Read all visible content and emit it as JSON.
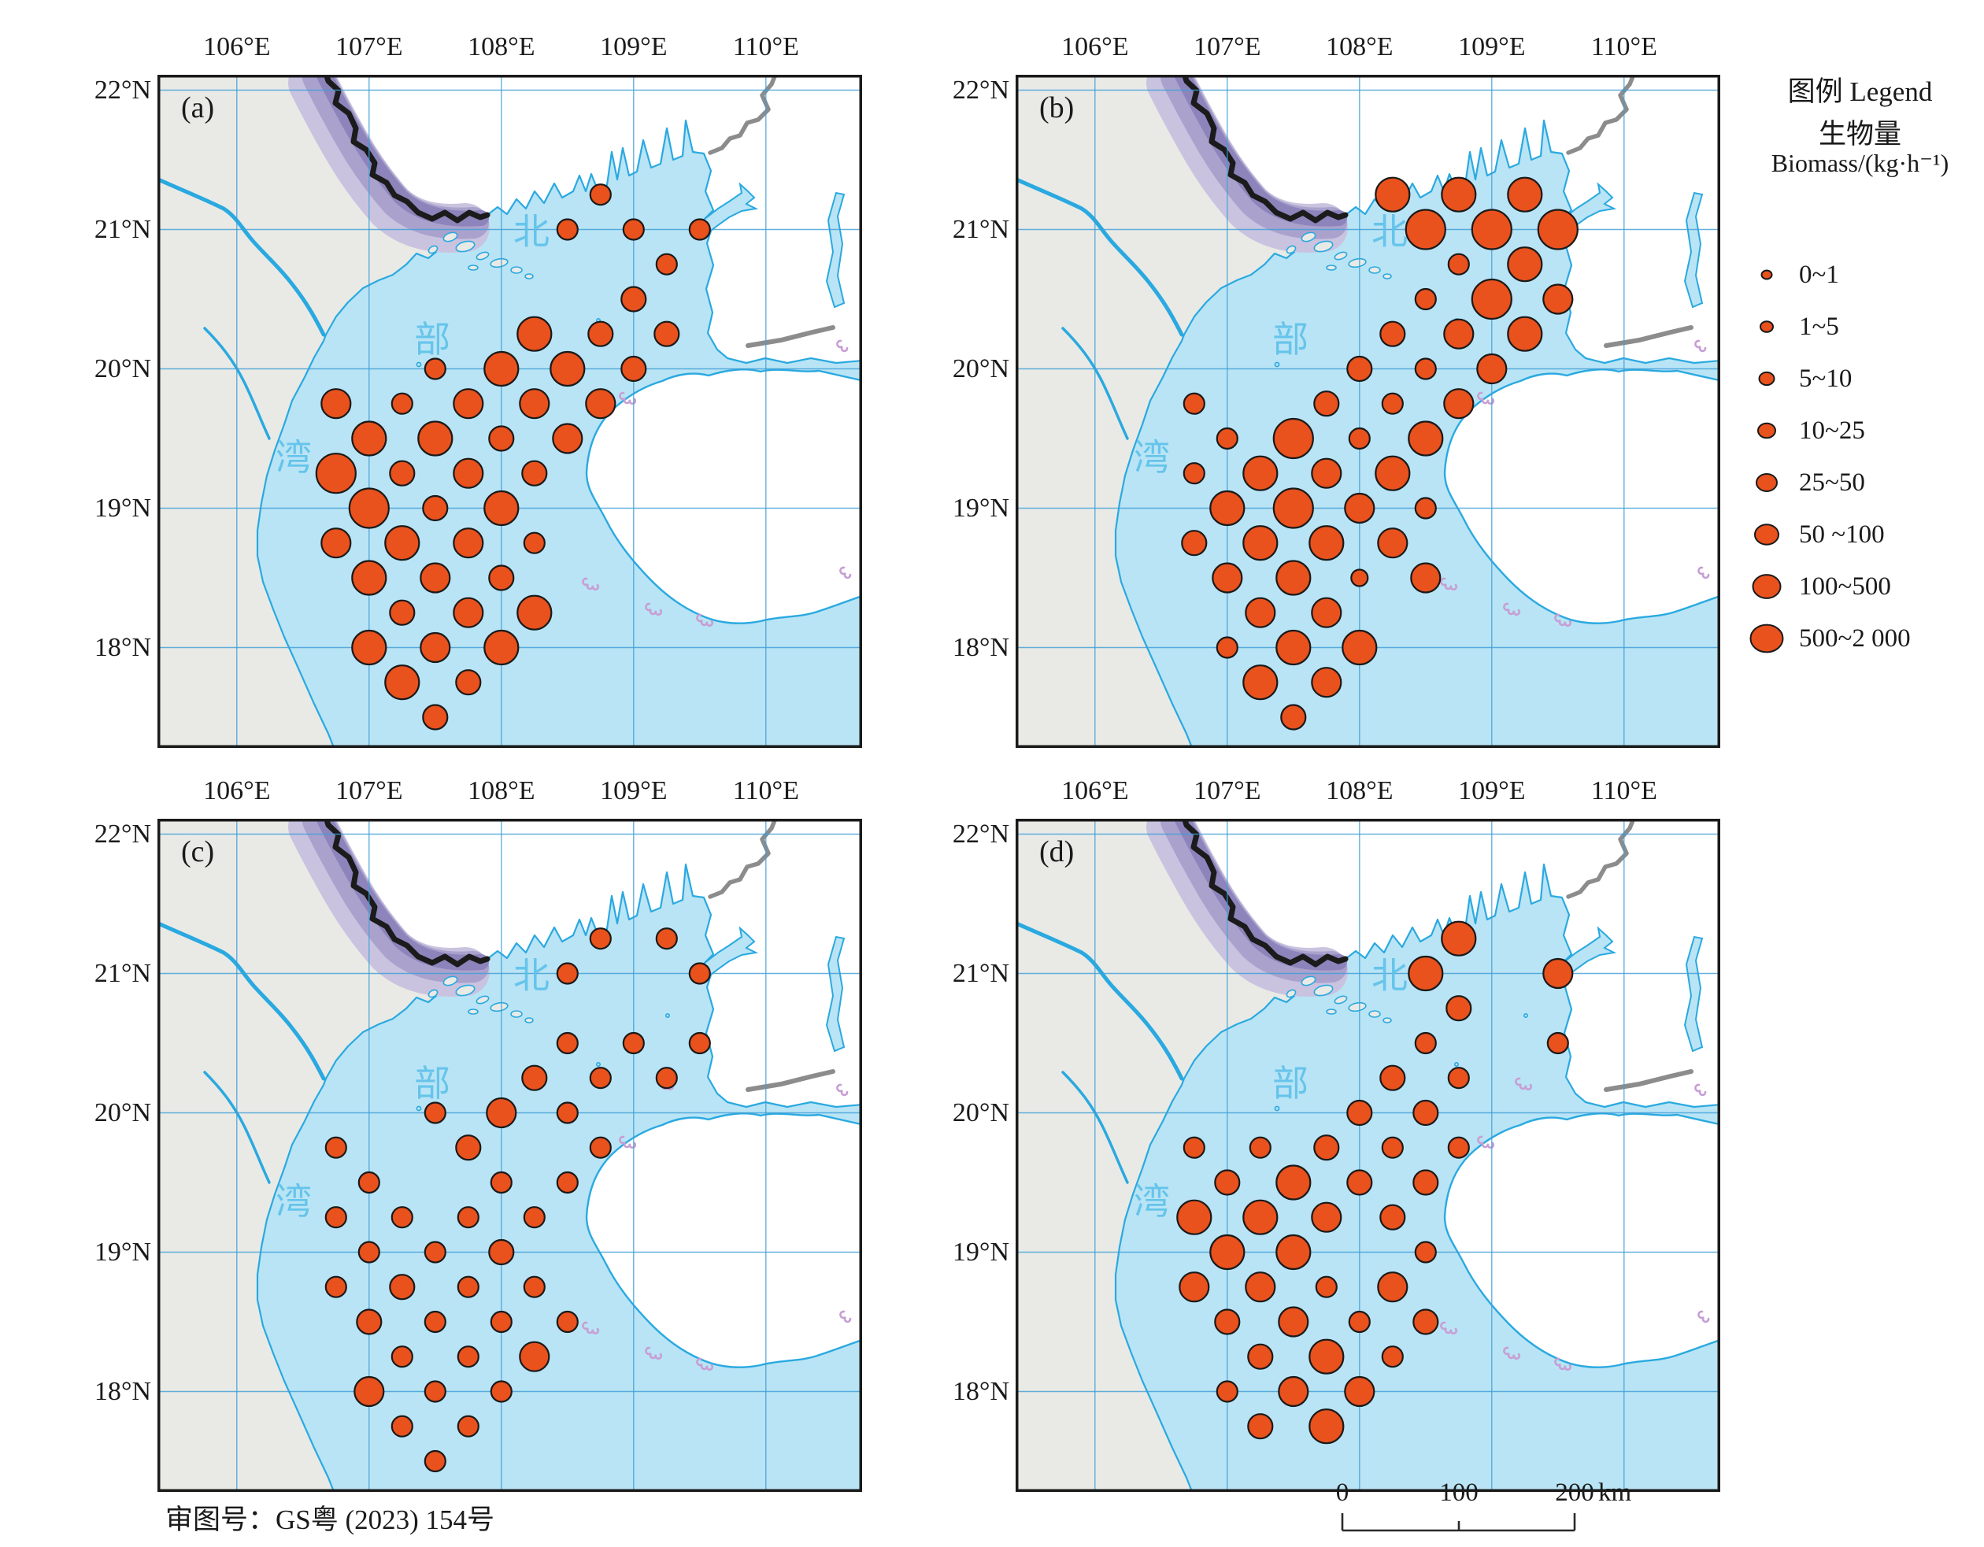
{
  "figure": {
    "kind": "four-panel bubble map of fishery biomass, Beibu Gulf"
  },
  "axes": {
    "lon_labels": [
      "106°E",
      "107°E",
      "108°E",
      "109°E",
      "110°E"
    ],
    "lat_labels": [
      "22°N",
      "21°N",
      "20°N",
      "19°N",
      "18°N"
    ]
  },
  "panels": [
    {
      "id": "a",
      "label": "(a)"
    },
    {
      "id": "b",
      "label": "(b)"
    },
    {
      "id": "c",
      "label": "(c)"
    },
    {
      "id": "d",
      "label": "(d)"
    }
  ],
  "sea_name": {
    "chars": [
      "北",
      "部",
      "湾"
    ]
  },
  "legend": {
    "title": "图例 Legend",
    "subtitle_zh": "生物量",
    "unit_line": "Biomass/(kg·h⁻¹)",
    "classes": [
      "0~1",
      "1~5",
      "5~10",
      "10~25",
      "25~50",
      "50 ~100",
      "100~500",
      "500~2 000"
    ]
  },
  "scalebar": {
    "labels": [
      "0",
      "100",
      "200"
    ],
    "unit": "km"
  },
  "note": "审图号：GS粤 (2023) 154号",
  "colors": {
    "sea": "#b9e4f5",
    "land_grey": "#e9eae6",
    "land_white": "#ffffff",
    "coast": "#2aa9e0",
    "grid": "#3f9ed6",
    "bubble": "#e9511d",
    "bubble_outline": "#1a1a1a",
    "border_black": "#1b1b1b",
    "border_grey": "#8c8c8c",
    "band_dark": "#8e84bc",
    "band_mid": "#aaa2cd",
    "band_light": "#c9c3e0",
    "coral": "#c79fd4",
    "sea_text": "#5ec1ea",
    "frame": "#1a1a1a"
  },
  "chart_data": {
    "type": "scatter",
    "subtype": "bubble-map",
    "x_axis": {
      "ticks": [
        "106°E",
        "107°E",
        "108°E",
        "109°E",
        "110°E"
      ],
      "range": [
        105.4,
        110.73
      ]
    },
    "y_axis": {
      "ticks": [
        "22°N",
        "21°N",
        "20°N",
        "19°N",
        "18°N"
      ],
      "range": [
        17.28,
        22.11
      ]
    },
    "size_classes": [
      "0~1",
      "1~5",
      "5~10",
      "10~25",
      "25~50",
      "50 ~100",
      "100~500",
      "500~2 000"
    ],
    "point_format": [
      "longitude_deg_E",
      "latitude_deg_N",
      "size_class_index_1to8"
    ],
    "series": [
      {
        "panel": "a",
        "label": "(a)",
        "points": [
          [
            108.75,
            21.25,
            3
          ],
          [
            108.5,
            21,
            3
          ],
          [
            109,
            21,
            3
          ],
          [
            109.5,
            21,
            3
          ],
          [
            109.25,
            20.75,
            3
          ],
          [
            109,
            20.5,
            4
          ],
          [
            108.25,
            20.25,
            6
          ],
          [
            108.75,
            20.25,
            4
          ],
          [
            109.25,
            20.25,
            4
          ],
          [
            107.5,
            20,
            3
          ],
          [
            108,
            20,
            6
          ],
          [
            108.5,
            20,
            6
          ],
          [
            109,
            20,
            4
          ],
          [
            106.75,
            19.75,
            5
          ],
          [
            107.25,
            19.75,
            3
          ],
          [
            107.75,
            19.75,
            5
          ],
          [
            108.25,
            19.75,
            5
          ],
          [
            108.75,
            19.75,
            5
          ],
          [
            107,
            19.5,
            6
          ],
          [
            107.5,
            19.5,
            6
          ],
          [
            108,
            19.5,
            4
          ],
          [
            108.5,
            19.5,
            5
          ],
          [
            106.75,
            19.25,
            7
          ],
          [
            107.25,
            19.25,
            4
          ],
          [
            107.75,
            19.25,
            5
          ],
          [
            108.25,
            19.25,
            4
          ],
          [
            107,
            19,
            7
          ],
          [
            107.5,
            19,
            4
          ],
          [
            108,
            19,
            6
          ],
          [
            106.75,
            18.75,
            5
          ],
          [
            107.25,
            18.75,
            6
          ],
          [
            107.75,
            18.75,
            5
          ],
          [
            108.25,
            18.75,
            3
          ],
          [
            107,
            18.5,
            6
          ],
          [
            107.5,
            18.5,
            5
          ],
          [
            108,
            18.5,
            4
          ],
          [
            107.25,
            18.25,
            4
          ],
          [
            107.75,
            18.25,
            5
          ],
          [
            108.25,
            18.25,
            6
          ],
          [
            107,
            18,
            6
          ],
          [
            107.5,
            18,
            5
          ],
          [
            108,
            18,
            6
          ],
          [
            107.25,
            17.75,
            6
          ],
          [
            107.75,
            17.75,
            4
          ],
          [
            107.5,
            17.5,
            4
          ]
        ]
      },
      {
        "panel": "b",
        "label": "(b)",
        "points": [
          [
            108.25,
            21.25,
            6
          ],
          [
            108.75,
            21.25,
            6
          ],
          [
            109.25,
            21.25,
            6
          ],
          [
            108.5,
            21,
            7
          ],
          [
            109,
            21,
            7
          ],
          [
            109.5,
            21,
            7
          ],
          [
            108.75,
            20.75,
            3
          ],
          [
            109.25,
            20.75,
            6
          ],
          [
            108.5,
            20.5,
            3
          ],
          [
            109,
            20.5,
            7
          ],
          [
            109.5,
            20.5,
            5
          ],
          [
            108.25,
            20.25,
            4
          ],
          [
            108.75,
            20.25,
            5
          ],
          [
            109.25,
            20.25,
            6
          ],
          [
            108,
            20,
            4
          ],
          [
            108.5,
            20,
            3
          ],
          [
            109,
            20,
            5
          ],
          [
            106.75,
            19.75,
            3
          ],
          [
            107.75,
            19.75,
            4
          ],
          [
            108.25,
            19.75,
            3
          ],
          [
            108.75,
            19.75,
            5
          ],
          [
            107,
            19.5,
            3
          ],
          [
            107.5,
            19.5,
            7
          ],
          [
            108,
            19.5,
            3
          ],
          [
            108.5,
            19.5,
            6
          ],
          [
            106.75,
            19.25,
            3
          ],
          [
            107.25,
            19.25,
            6
          ],
          [
            107.75,
            19.25,
            5
          ],
          [
            108.25,
            19.25,
            6
          ],
          [
            107,
            19,
            6
          ],
          [
            107.5,
            19,
            7
          ],
          [
            108,
            19,
            5
          ],
          [
            108.5,
            19,
            3
          ],
          [
            106.75,
            18.75,
            4
          ],
          [
            107.25,
            18.75,
            6
          ],
          [
            107.75,
            18.75,
            6
          ],
          [
            108.25,
            18.75,
            5
          ],
          [
            107,
            18.5,
            5
          ],
          [
            107.5,
            18.5,
            6
          ],
          [
            108,
            18.5,
            2
          ],
          [
            108.5,
            18.5,
            5
          ],
          [
            107.25,
            18.25,
            5
          ],
          [
            107.75,
            18.25,
            5
          ],
          [
            107,
            18,
            3
          ],
          [
            107.5,
            18,
            6
          ],
          [
            108,
            18,
            6
          ],
          [
            107.25,
            17.75,
            6
          ],
          [
            107.75,
            17.75,
            5
          ],
          [
            107.5,
            17.5,
            4
          ]
        ]
      },
      {
        "panel": "c",
        "label": "(c)",
        "points": [
          [
            108.75,
            21.25,
            3
          ],
          [
            109.25,
            21.25,
            3
          ],
          [
            108.5,
            21,
            3
          ],
          [
            109.5,
            21,
            3
          ],
          [
            108.5,
            20.5,
            3
          ],
          [
            109,
            20.5,
            3
          ],
          [
            109.5,
            20.5,
            3
          ],
          [
            108.25,
            20.25,
            4
          ],
          [
            108.75,
            20.25,
            3
          ],
          [
            109.25,
            20.25,
            3
          ],
          [
            107.5,
            20,
            3
          ],
          [
            108,
            20,
            5
          ],
          [
            108.5,
            20,
            3
          ],
          [
            106.75,
            19.75,
            3
          ],
          [
            107.75,
            19.75,
            4
          ],
          [
            108.75,
            19.75,
            3
          ],
          [
            107,
            19.5,
            3
          ],
          [
            108,
            19.5,
            3
          ],
          [
            108.5,
            19.5,
            3
          ],
          [
            106.75,
            19.25,
            3
          ],
          [
            107.25,
            19.25,
            3
          ],
          [
            107.75,
            19.25,
            3
          ],
          [
            108.25,
            19.25,
            3
          ],
          [
            107,
            19,
            3
          ],
          [
            107.5,
            19,
            3
          ],
          [
            108,
            19,
            4
          ],
          [
            106.75,
            18.75,
            3
          ],
          [
            107.25,
            18.75,
            4
          ],
          [
            107.75,
            18.75,
            3
          ],
          [
            108.25,
            18.75,
            3
          ],
          [
            107,
            18.5,
            4
          ],
          [
            107.5,
            18.5,
            3
          ],
          [
            108,
            18.5,
            3
          ],
          [
            108.5,
            18.5,
            3
          ],
          [
            107.25,
            18.25,
            3
          ],
          [
            107.75,
            18.25,
            3
          ],
          [
            108.25,
            18.25,
            5
          ],
          [
            107,
            18,
            5
          ],
          [
            107.5,
            18,
            3
          ],
          [
            108,
            18,
            3
          ],
          [
            107.25,
            17.75,
            3
          ],
          [
            107.75,
            17.75,
            3
          ],
          [
            107.5,
            17.5,
            3
          ]
        ]
      },
      {
        "panel": "d",
        "label": "(d)",
        "points": [
          [
            108.75,
            21.25,
            6
          ],
          [
            108.5,
            21,
            6
          ],
          [
            109.5,
            21,
            5
          ],
          [
            108.75,
            20.75,
            4
          ],
          [
            108.5,
            20.5,
            3
          ],
          [
            109.5,
            20.5,
            3
          ],
          [
            108.25,
            20.25,
            4
          ],
          [
            108.75,
            20.25,
            3
          ],
          [
            108,
            20,
            4
          ],
          [
            108.5,
            20,
            4
          ],
          [
            106.75,
            19.75,
            3
          ],
          [
            107.25,
            19.75,
            3
          ],
          [
            107.75,
            19.75,
            4
          ],
          [
            108.25,
            19.75,
            3
          ],
          [
            108.75,
            19.75,
            3
          ],
          [
            107,
            19.5,
            4
          ],
          [
            107.5,
            19.5,
            6
          ],
          [
            108,
            19.5,
            4
          ],
          [
            108.5,
            19.5,
            4
          ],
          [
            106.75,
            19.25,
            6
          ],
          [
            107.25,
            19.25,
            6
          ],
          [
            107.75,
            19.25,
            5
          ],
          [
            108.25,
            19.25,
            4
          ],
          [
            107,
            19,
            6
          ],
          [
            107.5,
            19,
            6
          ],
          [
            108.5,
            19,
            3
          ],
          [
            106.75,
            18.75,
            5
          ],
          [
            107.25,
            18.75,
            5
          ],
          [
            107.75,
            18.75,
            3
          ],
          [
            108.25,
            18.75,
            5
          ],
          [
            107,
            18.5,
            4
          ],
          [
            107.5,
            18.5,
            5
          ],
          [
            108,
            18.5,
            3
          ],
          [
            108.5,
            18.5,
            4
          ],
          [
            107.25,
            18.25,
            4
          ],
          [
            107.75,
            18.25,
            6
          ],
          [
            108.25,
            18.25,
            3
          ],
          [
            107,
            18,
            3
          ],
          [
            107.5,
            18,
            5
          ],
          [
            108,
            18,
            5
          ],
          [
            107.25,
            17.75,
            4
          ],
          [
            107.75,
            17.75,
            6
          ]
        ]
      }
    ]
  }
}
